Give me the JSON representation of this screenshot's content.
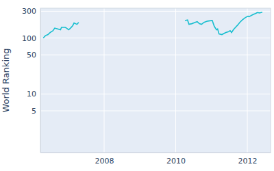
{
  "chart_data": {
    "type": "line",
    "y_label": "World Ranking",
    "color": "#17becf",
    "log": "y",
    "grid": true,
    "x": [
      2006.3,
      2006.36,
      2006.43,
      2006.49,
      2006.57,
      2006.62,
      2006.7,
      2006.78,
      2006.81,
      2006.91,
      2006.95,
      2007.01,
      2007.06,
      2007.12,
      2007.16,
      2007.24,
      2007.29,
      2008.5,
      2010.26,
      2010.33,
      2010.37,
      2010.45,
      2010.54,
      2010.6,
      2010.66,
      2010.72,
      2010.79,
      2010.89,
      2011.02,
      2011.08,
      2011.14,
      2011.17,
      2011.21,
      2011.29,
      2011.4,
      2011.48,
      2011.52,
      2011.56,
      2011.61,
      2011.67,
      2011.73,
      2011.79,
      2011.86,
      2011.94,
      2012.02,
      2012.05,
      2012.15,
      2012.24,
      2012.28,
      2012.34,
      2012.42
    ],
    "values": [
      100,
      110,
      115,
      125,
      135,
      150,
      145,
      140,
      155,
      155,
      150,
      140,
      150,
      165,
      185,
      175,
      190,
      null,
      205,
      210,
      175,
      180,
      190,
      195,
      180,
      175,
      190,
      200,
      205,
      160,
      140,
      145,
      118,
      115,
      125,
      130,
      135,
      125,
      140,
      155,
      170,
      190,
      210,
      230,
      245,
      240,
      260,
      275,
      285,
      280,
      290
    ],
    "xlim": [
      2006.22,
      2012.65
    ],
    "xticks": [
      2008,
      2010,
      2012
    ],
    "ylim": [
      0.9,
      340
    ],
    "yticks": [
      5,
      10,
      50,
      100,
      300
    ]
  }
}
